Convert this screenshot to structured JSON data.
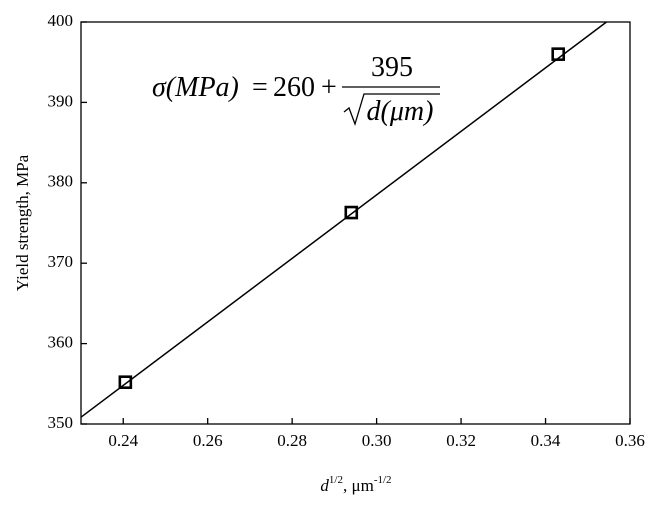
{
  "chart_data": {
    "type": "scatter",
    "y_label": "Yield strength, MPa",
    "x_label": {
      "var": "d",
      "exp": "1/2",
      "unit": ", μm",
      "unit_exp": "-1/2"
    },
    "equation": {
      "lhs": "σ(MPa)",
      "eq": "=",
      "intercept": 260,
      "plus": "+",
      "slope": 395,
      "denominator": "d(μm)"
    },
    "x": [
      0.2405,
      0.294,
      0.343
    ],
    "values": [
      355.2,
      376.3,
      396.0
    ],
    "color": "#000000",
    "xlim": [
      0.23,
      0.36
    ],
    "xticks": [
      0.24,
      0.26,
      0.28,
      {
        "value": 0.3,
        "label": "0.30"
      },
      0.32,
      0.34,
      0.36
    ],
    "ylim": [
      350,
      400
    ],
    "yticks": [
      350,
      360,
      370,
      380,
      390,
      400
    ]
  }
}
